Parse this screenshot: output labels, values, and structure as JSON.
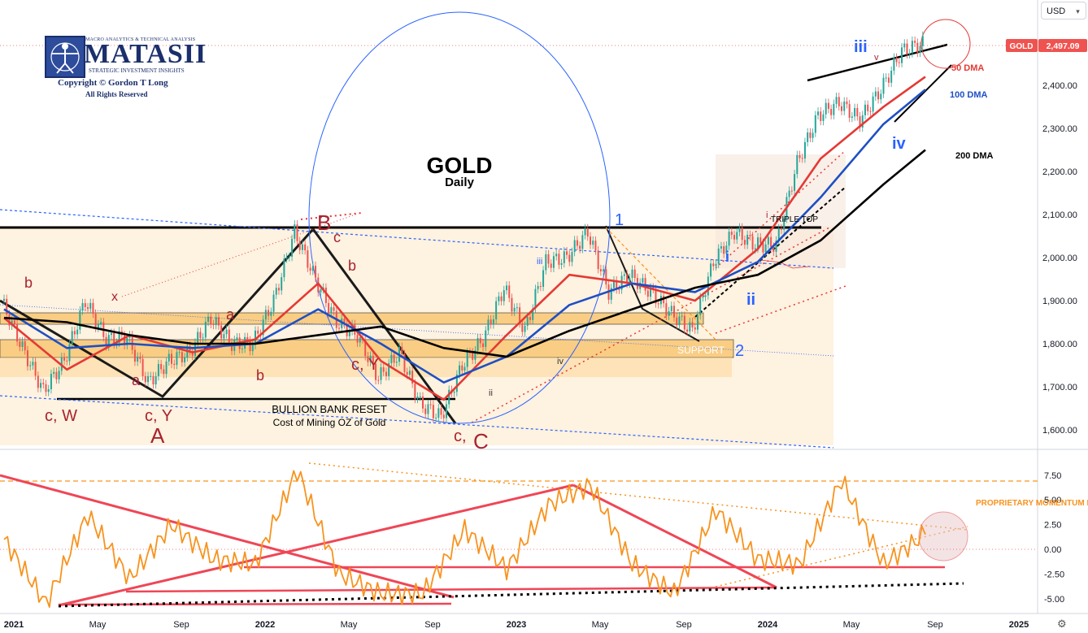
{
  "chart_data": [
    {
      "type": "line",
      "title": "GOLD",
      "subtitle": "Daily",
      "symbol": "GOLD",
      "last_price": "2,497.09",
      "currency": "USD",
      "y_ticks": [
        "2,400.00",
        "2,300.00",
        "2,200.00",
        "2,100.00",
        "2,000.00",
        "1,900.00",
        "1,800.00",
        "1,700.00",
        "1,600.00"
      ],
      "x_ticks": [
        "2021",
        "May",
        "Sep",
        "2022",
        "May",
        "Sep",
        "2023",
        "May",
        "Sep",
        "2024",
        "May",
        "Sep",
        "2025"
      ],
      "ylim": [
        1560,
        2520
      ],
      "series": [
        {
          "name": "GOLD",
          "color": "#26a69a",
          "x": [
            "2021-01",
            "2021-02",
            "2021-03",
            "2021-04",
            "2021-05",
            "2021-06",
            "2021-07",
            "2021-08",
            "2021-09",
            "2021-10",
            "2021-11",
            "2021-12",
            "2022-01",
            "2022-02",
            "2022-03",
            "2022-04",
            "2022-05",
            "2022-06",
            "2022-07",
            "2022-08",
            "2022-09",
            "2022-10",
            "2022-11",
            "2022-12",
            "2023-01",
            "2023-02",
            "2023-03",
            "2023-04",
            "2023-05",
            "2023-06",
            "2023-07",
            "2023-08",
            "2023-09",
            "2023-10",
            "2023-11",
            "2023-12",
            "2024-01",
            "2024-02",
            "2024-03",
            "2024-04",
            "2024-05",
            "2024-06",
            "2024-07",
            "2024-08",
            "2024-09"
          ],
          "y": [
            1900,
            1790,
            1690,
            1760,
            1900,
            1810,
            1815,
            1710,
            1760,
            1780,
            1860,
            1800,
            1800,
            1900,
            2060,
            1950,
            1850,
            1820,
            1720,
            1780,
            1660,
            1630,
            1750,
            1810,
            1930,
            1830,
            1990,
            2000,
            2060,
            1920,
            1960,
            1920,
            1870,
            1830,
            1990,
            2060,
            2030,
            2030,
            2220,
            2330,
            2360,
            2320,
            2390,
            2480,
            2497
          ]
        },
        {
          "name": "50 DMA",
          "color": "#e53935",
          "x": [
            "2021-01",
            "2021-04",
            "2021-07",
            "2021-10",
            "2022-01",
            "2022-04",
            "2022-07",
            "2022-10",
            "2023-01",
            "2023-04",
            "2023-07",
            "2023-10",
            "2024-01",
            "2024-04",
            "2024-07",
            "2024-09"
          ],
          "y": [
            1860,
            1740,
            1820,
            1780,
            1810,
            1940,
            1760,
            1670,
            1820,
            1960,
            1940,
            1900,
            2020,
            2230,
            2350,
            2420
          ]
        },
        {
          "name": "100 DMA",
          "color": "#1e4fc4",
          "x": [
            "2021-01",
            "2021-04",
            "2021-07",
            "2021-10",
            "2022-01",
            "2022-04",
            "2022-07",
            "2022-10",
            "2023-01",
            "2023-04",
            "2023-07",
            "2023-10",
            "2024-01",
            "2024-04",
            "2024-07",
            "2024-09"
          ],
          "y": [
            1880,
            1790,
            1800,
            1790,
            1800,
            1880,
            1800,
            1710,
            1770,
            1890,
            1940,
            1920,
            1990,
            2140,
            2310,
            2390
          ]
        },
        {
          "name": "200 DMA",
          "color": "#000000",
          "x": [
            "2021-01",
            "2021-04",
            "2021-07",
            "2021-10",
            "2022-01",
            "2022-04",
            "2022-07",
            "2022-10",
            "2023-01",
            "2023-04",
            "2023-07",
            "2023-10",
            "2024-01",
            "2024-04",
            "2024-07",
            "2024-09"
          ],
          "y": [
            1860,
            1850,
            1820,
            1800,
            1800,
            1820,
            1840,
            1790,
            1770,
            1830,
            1880,
            1930,
            1960,
            2040,
            2170,
            2250
          ]
        }
      ],
      "annotations": [
        "GOLD",
        "Daily",
        "50 DMA",
        "100 DMA",
        "200 DMA",
        "BULLION BANK RESET",
        "Cost of Mining OZ of Gold",
        "SUPPORT",
        "TRIPLE TOP",
        "A",
        "B",
        "C",
        "1",
        "2",
        "iii",
        "iv",
        "ii",
        "v",
        "c, W",
        "c, Y",
        "c, Y",
        "c,",
        "b",
        "b",
        "b",
        "a",
        "a",
        "c",
        "x",
        "i",
        "i",
        "ii",
        "iii",
        "iv"
      ]
    },
    {
      "type": "line",
      "title": "",
      "label": "PROPRIETARY MOMENTUM II",
      "y_ticks": [
        "7.50",
        "5.00",
        "2.50",
        "0.00",
        "-2.50",
        "-5.00"
      ],
      "ylim": [
        -5.8,
        8.4
      ],
      "series": [
        {
          "name": "PROPRIETARY MOMENTUM II",
          "color": "#f7931e",
          "x": [
            "2021-01",
            "2021-03",
            "2021-05",
            "2021-07",
            "2021-09",
            "2021-11",
            "2022-01",
            "2022-03",
            "2022-05",
            "2022-07",
            "2022-09",
            "2022-11",
            "2023-01",
            "2023-03",
            "2023-05",
            "2023-07",
            "2023-09",
            "2023-11",
            "2024-01",
            "2024-03",
            "2024-05",
            "2024-07",
            "2024-09"
          ],
          "y": [
            1.0,
            -5.5,
            3.5,
            -3.0,
            2.5,
            -1.0,
            -1.5,
            8.0,
            -2.5,
            -4.5,
            -4.5,
            2.0,
            -2.0,
            4.5,
            6.5,
            -1.5,
            -4.5,
            4.0,
            -1.0,
            -1.5,
            7.0,
            -1.5,
            1.5
          ]
        }
      ]
    }
  ],
  "logo": {
    "line1": "MACRO ANALYTICS & TECHNICAL ANALYSIS",
    "brand": "MATASII",
    "line2": "STRATEGIC INVESTMENT INSIGHTS",
    "copyright": "Copyright © Gordon T Long",
    "rights": "All Rights Reserved"
  },
  "colors": {
    "up_candle": "#26a69a",
    "down_candle": "#ef5350",
    "ma50": "#e53935",
    "ma100": "#1e4fc4",
    "ma200": "#000000",
    "momentum": "#f7931e",
    "wave_red": "#a8232f",
    "wave_blue": "#2962ff",
    "zone": "#fde8c7",
    "price_tag": "#ef5350"
  },
  "ui": {
    "settings_icon": "gear-icon"
  }
}
